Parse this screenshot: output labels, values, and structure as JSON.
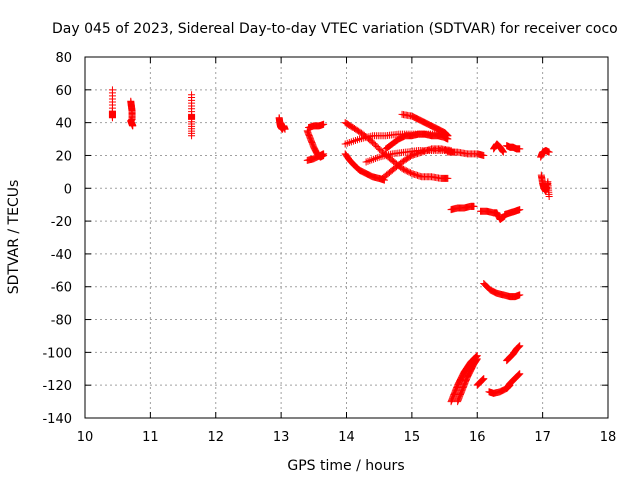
{
  "chart_data": {
    "type": "scatter",
    "title": "Day 045 of 2023, Sidereal Day-to-day VTEC variation (SDTVAR) for receiver coco",
    "xlabel": "GPS time / hours",
    "ylabel": "SDTVAR / TECUs",
    "xlim": [
      10,
      18
    ],
    "ylim": [
      -140,
      80
    ],
    "xticks": [
      10,
      11,
      12,
      13,
      14,
      15,
      16,
      17,
      18
    ],
    "yticks": [
      -140,
      -120,
      -100,
      -80,
      -60,
      -40,
      -20,
      0,
      20,
      40,
      60,
      80
    ],
    "grid": true,
    "marker": "+",
    "color": "#ff0000",
    "segments": [
      {
        "x": [
          10.42,
          10.42,
          10.42,
          10.42
        ],
        "y": [
          60,
          47,
          45,
          43
        ]
      },
      {
        "x": [
          10.7,
          10.71,
          10.72,
          10.72,
          10.7,
          10.72,
          10.73
        ],
        "y": [
          53,
          50,
          47,
          42,
          41,
          39,
          38
        ]
      },
      {
        "x": [
          11.63,
          11.63,
          11.63,
          11.63
        ],
        "y": [
          57,
          45,
          42,
          32
        ]
      },
      {
        "x": [
          12.97,
          12.98,
          12.99,
          13.0,
          13.02,
          13.04,
          13.06
        ],
        "y": [
          43,
          40,
          38,
          37,
          36,
          38,
          36
        ]
      },
      {
        "x": [
          13.42,
          13.5,
          13.58,
          13.65
        ],
        "y": [
          37,
          38,
          38,
          39
        ]
      },
      {
        "x": [
          13.4,
          13.45,
          13.5,
          13.55,
          13.6,
          13.65
        ],
        "y": [
          35,
          30,
          25,
          21,
          19,
          20
        ]
      },
      {
        "x": [
          13.4,
          13.5,
          13.6,
          13.65
        ],
        "y": [
          17,
          18,
          20,
          21
        ]
      },
      {
        "x": [
          13.98,
          14.1,
          14.25,
          14.4,
          14.55,
          14.7,
          14.85,
          15.0,
          15.15,
          15.3,
          15.45,
          15.55
        ],
        "y": [
          40,
          37,
          33,
          28,
          22,
          17,
          12,
          9,
          7,
          7,
          6,
          6
        ]
      },
      {
        "x": [
          13.98,
          14.05,
          14.12,
          14.2,
          14.3,
          14.4,
          14.5,
          14.58
        ],
        "y": [
          21,
          17,
          14,
          11,
          9,
          7,
          6,
          5
        ]
      },
      {
        "x": [
          13.98,
          14.2,
          14.4,
          14.6,
          14.8,
          15.0,
          15.2,
          15.4,
          15.55
        ],
        "y": [
          27,
          30,
          32,
          32,
          33,
          33,
          33,
          33,
          32
        ]
      },
      {
        "x": [
          14.3,
          14.5,
          14.7,
          14.9,
          15.1,
          15.3,
          15.5,
          15.65
        ],
        "y": [
          16,
          19,
          21,
          22,
          23,
          23,
          23,
          22
        ]
      },
      {
        "x": [
          14.55,
          14.7,
          14.85,
          15.0,
          15.15,
          15.3,
          15.45,
          15.6
        ],
        "y": [
          6,
          11,
          16,
          20,
          22,
          24,
          24,
          23
        ]
      },
      {
        "x": [
          14.6,
          14.7,
          14.8,
          14.9,
          15.0,
          15.1,
          15.2,
          15.3,
          15.4,
          15.5,
          15.55
        ],
        "y": [
          24,
          27,
          30,
          32,
          32,
          33,
          33,
          32,
          32,
          31,
          30
        ]
      },
      {
        "x": [
          14.85,
          15.0,
          15.1,
          15.2,
          15.3,
          15.4,
          15.5,
          15.55
        ],
        "y": [
          45,
          44,
          42,
          40,
          38,
          36,
          34,
          32
        ]
      },
      {
        "x": [
          15.55,
          15.7,
          15.85,
          16.0,
          16.1
        ],
        "y": [
          22,
          22,
          21,
          21,
          20
        ]
      },
      {
        "x": [
          15.6,
          15.7,
          15.8,
          15.9,
          15.95
        ],
        "y": [
          -13,
          -12,
          -12,
          -11,
          -11
        ]
      },
      {
        "x": [
          16.05,
          16.15,
          16.25,
          16.3,
          16.35,
          16.42
        ],
        "y": [
          -14,
          -14,
          -15,
          -15,
          -19,
          -17
        ]
      },
      {
        "x": [
          16.42,
          16.5,
          16.58,
          16.65
        ],
        "y": [
          -16,
          -15,
          -14,
          -13
        ]
      },
      {
        "x": [
          16.25,
          16.3,
          16.35,
          16.4
        ],
        "y": [
          24,
          27,
          25,
          22
        ]
      },
      {
        "x": [
          16.45,
          16.5,
          16.55,
          16.6,
          16.65
        ],
        "y": [
          26,
          25,
          25,
          24,
          24
        ]
      },
      {
        "x": [
          16.1,
          16.2,
          16.3,
          16.4,
          16.5,
          16.58,
          16.65
        ],
        "y": [
          -58,
          -62,
          -64,
          -65,
          -66,
          -66,
          -65
        ]
      },
      {
        "x": [
          15.6,
          15.65,
          15.7,
          15.75,
          15.8,
          15.85,
          15.9,
          15.95,
          16.0
        ],
        "y": [
          -130,
          -125,
          -120,
          -116,
          -112,
          -109,
          -106,
          -104,
          -102
        ]
      },
      {
        "x": [
          15.7,
          15.75,
          15.8,
          15.85,
          15.9,
          15.95,
          16.0
        ],
        "y": [
          -130,
          -125,
          -120,
          -115,
          -111,
          -107,
          -104
        ]
      },
      {
        "x": [
          16.0,
          16.05,
          16.1
        ],
        "y": [
          -120,
          -118,
          -116
        ]
      },
      {
        "x": [
          16.18,
          16.25,
          16.35,
          16.45,
          16.5
        ],
        "y": [
          -124,
          -125,
          -124,
          -122,
          -120
        ]
      },
      {
        "x": [
          16.45,
          16.5,
          16.55,
          16.6,
          16.65
        ],
        "y": [
          -122,
          -119,
          -117,
          -115,
          -113
        ]
      },
      {
        "x": [
          16.45,
          16.5,
          16.55,
          16.6,
          16.65
        ],
        "y": [
          -105,
          -103,
          -101,
          -98,
          -96
        ]
      },
      {
        "x": [
          16.97,
          17.0,
          17.05,
          17.1
        ],
        "y": [
          19,
          22,
          23,
          22
        ]
      },
      {
        "x": [
          16.98,
          17.0,
          17.02,
          17.05,
          17.08,
          17.1
        ],
        "y": [
          8,
          3,
          0,
          -2,
          4,
          -5
        ]
      }
    ]
  }
}
